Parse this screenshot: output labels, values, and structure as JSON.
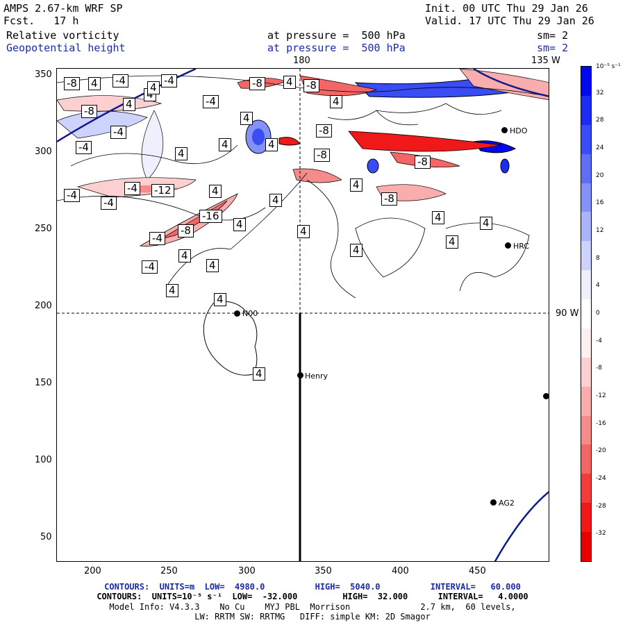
{
  "header": {
    "model_title": "AMPS 2.67-km WRF SP",
    "forecast": "Fcst.   17 h",
    "init": "Init. 00 UTC Thu 29 Jan 26",
    "valid": "Valid. 17 UTC Thu 29 Jan 26",
    "field1_name": "Relative vorticity",
    "field1_level": "at pressure =  500 hPa",
    "field1_sm": "sm= 2",
    "field2_name": "Geopotential height",
    "field2_level": "at pressure =  500 hPa",
    "field2_sm": "sm= 2"
  },
  "map": {
    "lon_top_label": "180",
    "lon_right_top_label": "135 W",
    "lon_right_label": "90 W",
    "y_ticks": [
      "350",
      "300",
      "250",
      "200",
      "150",
      "100",
      "50"
    ],
    "x_ticks": [
      "200",
      "250",
      "300",
      "350",
      "400",
      "450"
    ],
    "stations": [
      {
        "name": "N00"
      },
      {
        "name": "Henry"
      },
      {
        "name": "HRC"
      },
      {
        "name": "AG2"
      },
      {
        "name": "HDO"
      }
    ],
    "contour_labels": [
      "-8",
      "4",
      "-4",
      "4",
      "-4",
      "4",
      "4",
      "-8",
      "4",
      "-4",
      "-8",
      "4",
      "-8",
      "4",
      "-4",
      "4",
      "4",
      "-8",
      "4",
      "-4",
      "4",
      "-4",
      "-12",
      "4",
      "-4",
      "-4",
      "4",
      "4",
      "-16",
      "4",
      "-8",
      "4",
      "4",
      "4",
      "4",
      "-4",
      "4",
      "-4",
      "4",
      "4",
      "4",
      "4",
      "4",
      "-8",
      "-8",
      "-8"
    ]
  },
  "colorbar": {
    "unit": "10⁻⁵ s⁻¹",
    "ticks": [
      "32",
      "28",
      "24",
      "20",
      "16",
      "12",
      "8",
      "4",
      "0",
      "-4",
      "-8",
      "-12",
      "-16",
      "-20",
      "-24",
      "-28",
      "-32"
    ],
    "colors": [
      "#0008f0",
      "#1d2cf2",
      "#3a4df4",
      "#5e6ff6",
      "#8391f8",
      "#a9b4fb",
      "#cdd3fc",
      "#eef0fe",
      "#ffffff",
      "#feeeee",
      "#fcd0d0",
      "#f9adad",
      "#f68b8b",
      "#f46565",
      "#f23c3c",
      "#f01818",
      "#e60000"
    ]
  },
  "footer": {
    "line1": "CONTOURS:  UNITS=m  LOW=  4980.0          HIGH=  5040.0          INTERVAL=   60.000",
    "line2": "CONTOURS:  UNITS=10⁻⁵ s⁻¹  LOW=  -32.000         HIGH=  32.000      INTERVAL=   4.0000",
    "line3": "Model Info: V4.3.3    No Cu    MYJ PBL  Morrison              2.7 km,  60 levels,",
    "line4": "LW: RRTM SW: RRTMG   DIFF: simple KM: 2D Smagor"
  }
}
